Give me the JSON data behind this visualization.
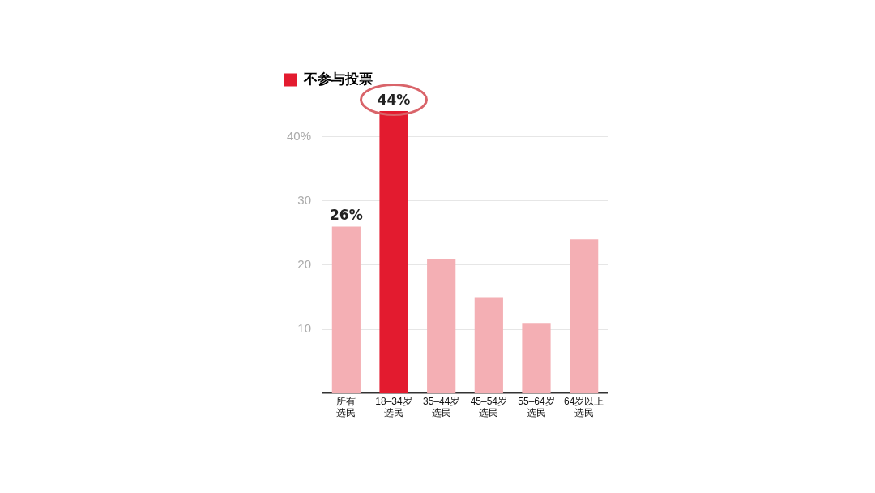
{
  "chart_data": {
    "type": "bar",
    "categories": [
      "所有选民",
      "18–34岁选民",
      "35–44岁选民",
      "45–54岁选民",
      "55–64岁选民",
      "64岁以上选民"
    ],
    "series": [
      {
        "name": "不参与投票",
        "color": "#e31b2f",
        "colors": [
          "#f4afb4",
          "#e31b2f",
          "#f4afb4",
          "#f4afb4",
          "#f4afb4",
          "#f4afb4"
        ],
        "values": [
          26,
          44,
          21,
          15,
          11,
          24
        ],
        "value_labels": [
          "26%",
          "44%",
          null,
          null,
          null,
          null
        ]
      }
    ],
    "ylim": [
      0,
      44
    ],
    "yticks": [
      10,
      20,
      30,
      {
        "value": 40,
        "label": "40%"
      }
    ],
    "grid": "y",
    "legend": "top left"
  }
}
